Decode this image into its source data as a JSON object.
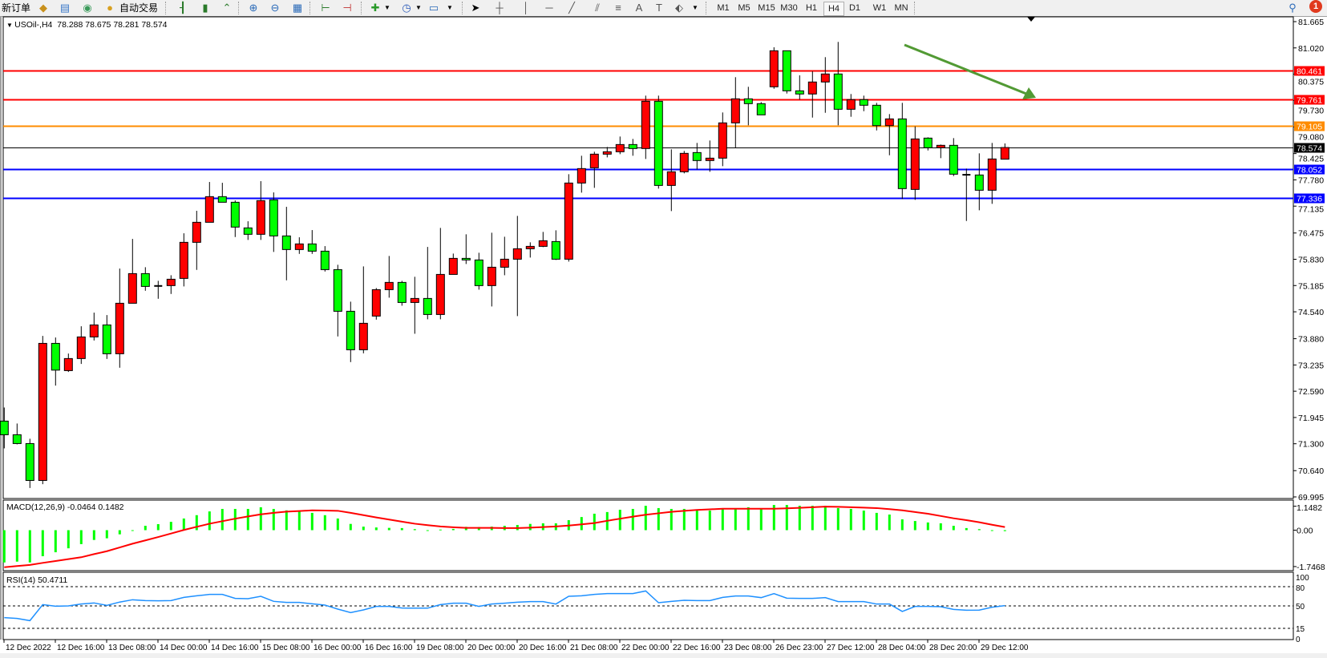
{
  "toolbar": {
    "new_order_label": "新订单",
    "auto_trading_label": "自动交易",
    "icons": [
      "new-order",
      "market-watch-book",
      "data-window",
      "signals",
      "auto-trading",
      "bar-chart",
      "candlestick-chart",
      "line-chart",
      "zoom-in",
      "zoom-out",
      "tile-windows",
      "chart-shift",
      "auto-scroll",
      "indicators",
      "periodicity-clock",
      "templates",
      "cursor",
      "crosshair",
      "vertical-line",
      "horizontal-line",
      "trendline",
      "fibonacci",
      "fibo-lines",
      "text",
      "text-label",
      "arrows"
    ],
    "periods": [
      "M1",
      "M5",
      "M15",
      "M30",
      "H1",
      "H4",
      "D1",
      "W1",
      "MN"
    ],
    "active_period": "H4",
    "notification_count": "1"
  },
  "chart_header": {
    "symbol_timeframe": "USOil-,H4",
    "ohlc": "78.288 78.675 78.281 78.574"
  },
  "chart_data": [
    {
      "type": "candlestick",
      "symbol": "USOil-",
      "timeframe": "H4",
      "up_color": "#ff0000",
      "down_color": "#00ff00",
      "ylim": [
        69.995,
        81.665
      ],
      "price_ticks": [
        "81.665",
        "81.020",
        "80.375",
        "79.730",
        "79.080",
        "78.425",
        "77.780",
        "77.135",
        "76.475",
        "75.830",
        "75.185",
        "74.540",
        "73.880",
        "73.235",
        "72.590",
        "71.945",
        "71.300",
        "70.640",
        "69.995"
      ],
      "time_labels": [
        "12 Dec 2022",
        "12 Dec 16:00",
        "13 Dec 08:00",
        "14 Dec 00:00",
        "14 Dec 16:00",
        "15 Dec 08:00",
        "16 Dec 00:00",
        "16 Dec 16:00",
        "19 Dec 08:00",
        "20 Dec 00:00",
        "20 Dec 16:00",
        "21 Dec 08:00",
        "22 Dec 00:00",
        "22 Dec 16:00",
        "23 Dec 08:00",
        "26 Dec 23:00",
        "27 Dec 12:00",
        "28 Dec 04:00",
        "28 Dec 20:00",
        "29 Dec 12:00"
      ],
      "candles_ohlc": [
        [
          71.856,
          72.19,
          71.187,
          71.521
        ],
        [
          71.521,
          71.797,
          71.285,
          71.305
        ],
        [
          71.305,
          71.423,
          70.214,
          70.399
        ],
        [
          70.399,
          73.948,
          70.307,
          73.765
        ],
        [
          73.765,
          73.909,
          72.728,
          73.108
        ],
        [
          73.096,
          73.515,
          73.063,
          73.392
        ],
        [
          73.392,
          74.185,
          73.26,
          73.923
        ],
        [
          73.923,
          74.52,
          73.836,
          74.218
        ],
        [
          74.218,
          74.46,
          73.383,
          73.51
        ],
        [
          73.51,
          75.602,
          73.167,
          74.75
        ],
        [
          74.75,
          76.33,
          74.75,
          75.478
        ],
        [
          75.478,
          75.635,
          75.057,
          75.163
        ],
        [
          75.175,
          75.301,
          74.86,
          75.175
        ],
        [
          75.183,
          75.438,
          74.978,
          75.34
        ],
        [
          75.36,
          76.468,
          75.163,
          76.246
        ],
        [
          76.246,
          77.02,
          75.569,
          76.738
        ],
        [
          76.738,
          77.728,
          76.738,
          77.368
        ],
        [
          77.368,
          77.708,
          77.23,
          77.23
        ],
        [
          77.23,
          77.275,
          76.376,
          76.62
        ],
        [
          76.6,
          76.763,
          76.305,
          76.443
        ],
        [
          76.443,
          77.748,
          76.305,
          77.27
        ],
        [
          77.289,
          77.472,
          76.01,
          76.403
        ],
        [
          76.403,
          77.118,
          75.313,
          76.069
        ],
        [
          76.069,
          76.37,
          75.962,
          76.207
        ],
        [
          76.207,
          76.547,
          75.962,
          76.029
        ],
        [
          76.029,
          76.153,
          75.529,
          75.576
        ],
        [
          75.576,
          75.695,
          73.935,
          74.553
        ],
        [
          74.553,
          74.789,
          73.305,
          73.608
        ],
        [
          73.608,
          75.655,
          73.521,
          74.258
        ],
        [
          74.435,
          75.123,
          74.348,
          75.084
        ],
        [
          75.084,
          75.911,
          74.887,
          75.262
        ],
        [
          75.262,
          75.301,
          74.69,
          74.769
        ],
        [
          74.769,
          75.4,
          74.001,
          74.868
        ],
        [
          74.868,
          76.133,
          74.356,
          74.474
        ],
        [
          74.474,
          76.6,
          74.356,
          75.458
        ],
        [
          75.458,
          75.97,
          75.458,
          75.852
        ],
        [
          75.852,
          76.443,
          75.714,
          75.813
        ],
        [
          75.813,
          75.99,
          75.084,
          75.183
        ],
        [
          75.183,
          76.482,
          74.671,
          75.635
        ],
        [
          75.635,
          76.383,
          75.438,
          75.832
        ],
        [
          75.832,
          76.895,
          74.435,
          76.088
        ],
        [
          76.088,
          76.246,
          75.872,
          76.147
        ],
        [
          76.147,
          76.502,
          76.128,
          76.285
        ],
        [
          76.265,
          76.541,
          75.813,
          75.832
        ],
        [
          75.832,
          77.919,
          75.773,
          77.702
        ],
        [
          77.702,
          78.372,
          77.466,
          78.057
        ],
        [
          78.076,
          78.47,
          77.584,
          78.411
        ],
        [
          78.411,
          78.588,
          78.332,
          78.47
        ],
        [
          78.47,
          78.844,
          78.411,
          78.647
        ],
        [
          78.647,
          78.785,
          78.372,
          78.549
        ],
        [
          78.549,
          79.848,
          78.293,
          79.71
        ],
        [
          79.71,
          79.848,
          77.565,
          77.643
        ],
        [
          77.643,
          78.529,
          77.013,
          77.978
        ],
        [
          77.978,
          78.49,
          77.939,
          78.431
        ],
        [
          78.45,
          78.687,
          78.037,
          78.254
        ],
        [
          78.254,
          78.746,
          77.978,
          78.313
        ],
        [
          78.313,
          79.435,
          78.116,
          79.179
        ],
        [
          79.179,
          80.301,
          78.569,
          79.77
        ],
        [
          79.77,
          80.065,
          79.12,
          79.651
        ],
        [
          79.651,
          79.69,
          79.376,
          79.376
        ],
        [
          80.065,
          81.035,
          80.017,
          80.95
        ],
        [
          80.95,
          80.95,
          79.9,
          79.966
        ],
        [
          79.966,
          80.346,
          79.75,
          79.888
        ],
        [
          79.888,
          80.445,
          79.309,
          80.183
        ],
        [
          80.183,
          80.793,
          79.427,
          80.38
        ],
        [
          80.38,
          81.167,
          79.12,
          79.513
        ],
        [
          79.513,
          79.888,
          79.329,
          79.75
        ],
        [
          79.75,
          79.848,
          79.466,
          79.612
        ],
        [
          79.612,
          79.671,
          78.994,
          79.112
        ],
        [
          79.112,
          79.395,
          78.384,
          79.277
        ],
        [
          79.277,
          79.671,
          77.309,
          77.565
        ],
        [
          77.545,
          79.092,
          77.289,
          78.785
        ],
        [
          78.805,
          78.825,
          78.502,
          78.569
        ],
        [
          78.569,
          78.647,
          78.313,
          78.628
        ],
        [
          78.628,
          78.805,
          77.872,
          77.919
        ],
        [
          77.905,
          78.057,
          76.77,
          77.905
        ],
        [
          77.9,
          78.431,
          77.033,
          77.525
        ],
        [
          77.525,
          78.687,
          77.191,
          78.293
        ],
        [
          78.288,
          78.675,
          78.281,
          78.574
        ]
      ],
      "horizontal_lines": [
        {
          "price": "80.461",
          "color": "#ff0000"
        },
        {
          "price": "79.761",
          "color": "#ff0000"
        },
        {
          "price": "79.105",
          "color": "#ff8c00"
        },
        {
          "price": "78.574",
          "color": "#000000",
          "kind": "bid"
        },
        {
          "price": "78.052",
          "color": "#0000ff"
        },
        {
          "price": "77.336",
          "color": "#0000ff"
        }
      ],
      "annotation_arrow": {
        "color": "#529a34",
        "direction": "down-right"
      }
    },
    {
      "type": "histogram+line",
      "title": "MACD(12,26,9) -0.0464 0.1482",
      "ylim": [
        -1.7468,
        1.1482
      ],
      "y_ticks": [
        "1.1482",
        "0.00",
        "-1.7468"
      ],
      "histogram_color": "#00ff00",
      "signal_color": "#ff0000",
      "histogram": [
        -1.55,
        -1.51,
        -1.55,
        -1.25,
        -1.06,
        -0.87,
        -0.67,
        -0.47,
        -0.39,
        -0.2,
        -0.02,
        0.21,
        0.29,
        0.4,
        0.56,
        0.72,
        0.9,
        1.02,
        1.02,
        1.02,
        1.1,
        1.02,
        0.95,
        0.91,
        0.83,
        0.72,
        0.56,
        0.3,
        0.17,
        0.13,
        0.11,
        0.1,
        0.05,
        -0.01,
        0.03,
        0.06,
        0.16,
        0.15,
        0.17,
        0.21,
        0.25,
        0.3,
        0.33,
        0.33,
        0.48,
        0.63,
        0.79,
        0.87,
        0.98,
        1.02,
        1.17,
        1.06,
        1.02,
        1.02,
        0.94,
        0.94,
        1.02,
        1.02,
        1.1,
        1.02,
        1.21,
        1.21,
        1.17,
        1.17,
        1.17,
        1.06,
        1.02,
        0.94,
        0.83,
        0.75,
        0.52,
        0.44,
        0.37,
        0.33,
        0.21,
        0.1,
        0.05,
        0.0,
        -0.0464
      ],
      "signal": [
        -1.78,
        -1.72,
        -1.67,
        -1.57,
        -1.48,
        -1.39,
        -1.3,
        -1.15,
        -1.01,
        -0.83,
        -0.65,
        -0.49,
        -0.33,
        -0.16,
        0.01,
        0.16,
        0.31,
        0.43,
        0.55,
        0.66,
        0.76,
        0.83,
        0.89,
        0.92,
        0.95,
        0.94,
        0.93,
        0.83,
        0.72,
        0.61,
        0.51,
        0.41,
        0.31,
        0.24,
        0.18,
        0.14,
        0.11,
        0.11,
        0.11,
        0.1,
        0.1,
        0.12,
        0.15,
        0.18,
        0.22,
        0.28,
        0.34,
        0.45,
        0.55,
        0.65,
        0.74,
        0.81,
        0.88,
        0.93,
        0.97,
        1.0,
        1.03,
        1.03,
        1.03,
        1.03,
        1.03,
        1.05,
        1.07,
        1.1,
        1.13,
        1.12,
        1.1,
        1.08,
        1.06,
        1.01,
        0.95,
        0.87,
        0.79,
        0.68,
        0.57,
        0.48,
        0.38,
        0.26,
        0.1482
      ]
    },
    {
      "type": "line",
      "title": "RSI(14) 50.4711",
      "ylim": [
        0,
        100
      ],
      "y_ticks": [
        "100",
        "80",
        "50",
        "15",
        "0"
      ],
      "levels": [
        80,
        50,
        15
      ],
      "color": "#1e90ff",
      "values": [
        31.7,
        30.4,
        27,
        52,
        49.6,
        50,
        52.9,
        54.6,
        50.8,
        56,
        59.6,
        58.3,
        58,
        58.3,
        63.3,
        65.8,
        67.9,
        67.9,
        61.7,
        61.2,
        65,
        57.1,
        55.4,
        55.4,
        53.3,
        51.3,
        45,
        39.6,
        43.8,
        49.2,
        49.2,
        46.7,
        46.5,
        46.5,
        52,
        54.2,
        54.2,
        49.2,
        53,
        54.2,
        55.8,
        56.7,
        56.7,
        52.9,
        65,
        65.8,
        67.9,
        69.2,
        69.2,
        69.2,
        73.3,
        55,
        57.1,
        58.8,
        58.3,
        58.3,
        63.3,
        65.4,
        65.4,
        62.9,
        69.2,
        62.1,
        61.7,
        61.7,
        62.9,
        56.7,
        56.7,
        56.7,
        52.9,
        52.9,
        41.3,
        49.2,
        49.2,
        48.8,
        44.6,
        43.3,
        43.5,
        48,
        50.4711
      ]
    }
  ]
}
